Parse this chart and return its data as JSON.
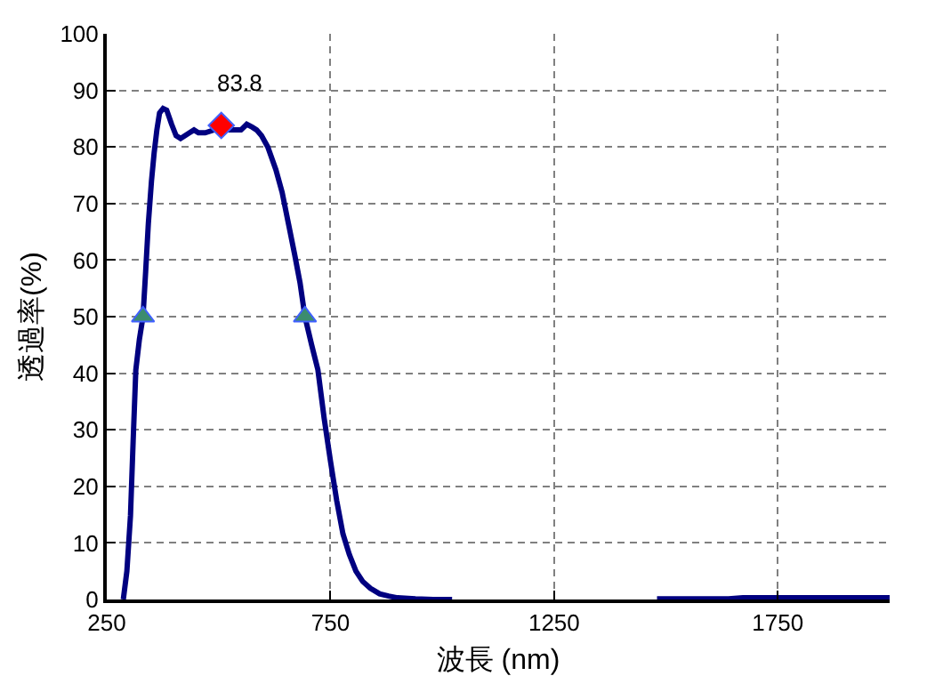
{
  "chart_data": {
    "type": "line",
    "xlabel": "波長 (nm)",
    "ylabel": "透過率(%)",
    "xlim": [
      250,
      2000
    ],
    "xticks": [
      250,
      750,
      1250,
      1750
    ],
    "ylim": [
      0,
      100
    ],
    "yticks": [
      0,
      10,
      20,
      30,
      40,
      50,
      60,
      70,
      80,
      90,
      100
    ],
    "grid": true,
    "line_style": "solid",
    "annotations": [
      {
        "text": "83.8",
        "x": 506,
        "y": 83.8
      }
    ],
    "series": [
      {
        "color": "#000080",
        "marker": "none",
        "x": [
          287,
          295,
          303,
          309,
          315,
          323,
          331,
          337,
          343,
          350,
          356,
          362,
          368,
          376,
          384,
          395,
          405,
          415,
          425,
          435,
          445,
          455,
          470,
          490,
          506,
          520,
          535,
          550,
          563,
          575,
          585,
          596,
          610,
          628,
          642,
          656,
          670,
          682,
          693,
          708,
          722,
          736,
          750,
          764,
          778,
          792,
          807,
          822,
          839,
          860,
          880,
          900,
          940,
          980,
          1022,
          null,
          1480,
          1560,
          1640,
          1672,
          1760,
          1850,
          2000
        ],
        "values": [
          0,
          5,
          14.8,
          28,
          40.6,
          46,
          50,
          58,
          66.5,
          74,
          79,
          83,
          86,
          86.8,
          86.5,
          84,
          82,
          81.5,
          82,
          82.5,
          83,
          82.5,
          82.5,
          83,
          83.8,
          83,
          83,
          83,
          84,
          83.5,
          83,
          82,
          80,
          76,
          72,
          66.5,
          61,
          56,
          50,
          45,
          40.6,
          32,
          24.5,
          17.5,
          11.6,
          8,
          5,
          3.2,
          2,
          1,
          0.6,
          0.3,
          0.1,
          0,
          0,
          null,
          0.1,
          0.1,
          0.1,
          0.3,
          0.3,
          0.3,
          0.3
        ]
      },
      {
        "type": "scatter",
        "color": "#3c8c6e",
        "marker": "triangle",
        "x": [
          331,
          693
        ],
        "values": [
          50,
          50
        ]
      },
      {
        "type": "scatter",
        "color": "#ff0000",
        "marker": "diamond",
        "x": [
          506
        ],
        "values": [
          83.8
        ]
      }
    ]
  }
}
